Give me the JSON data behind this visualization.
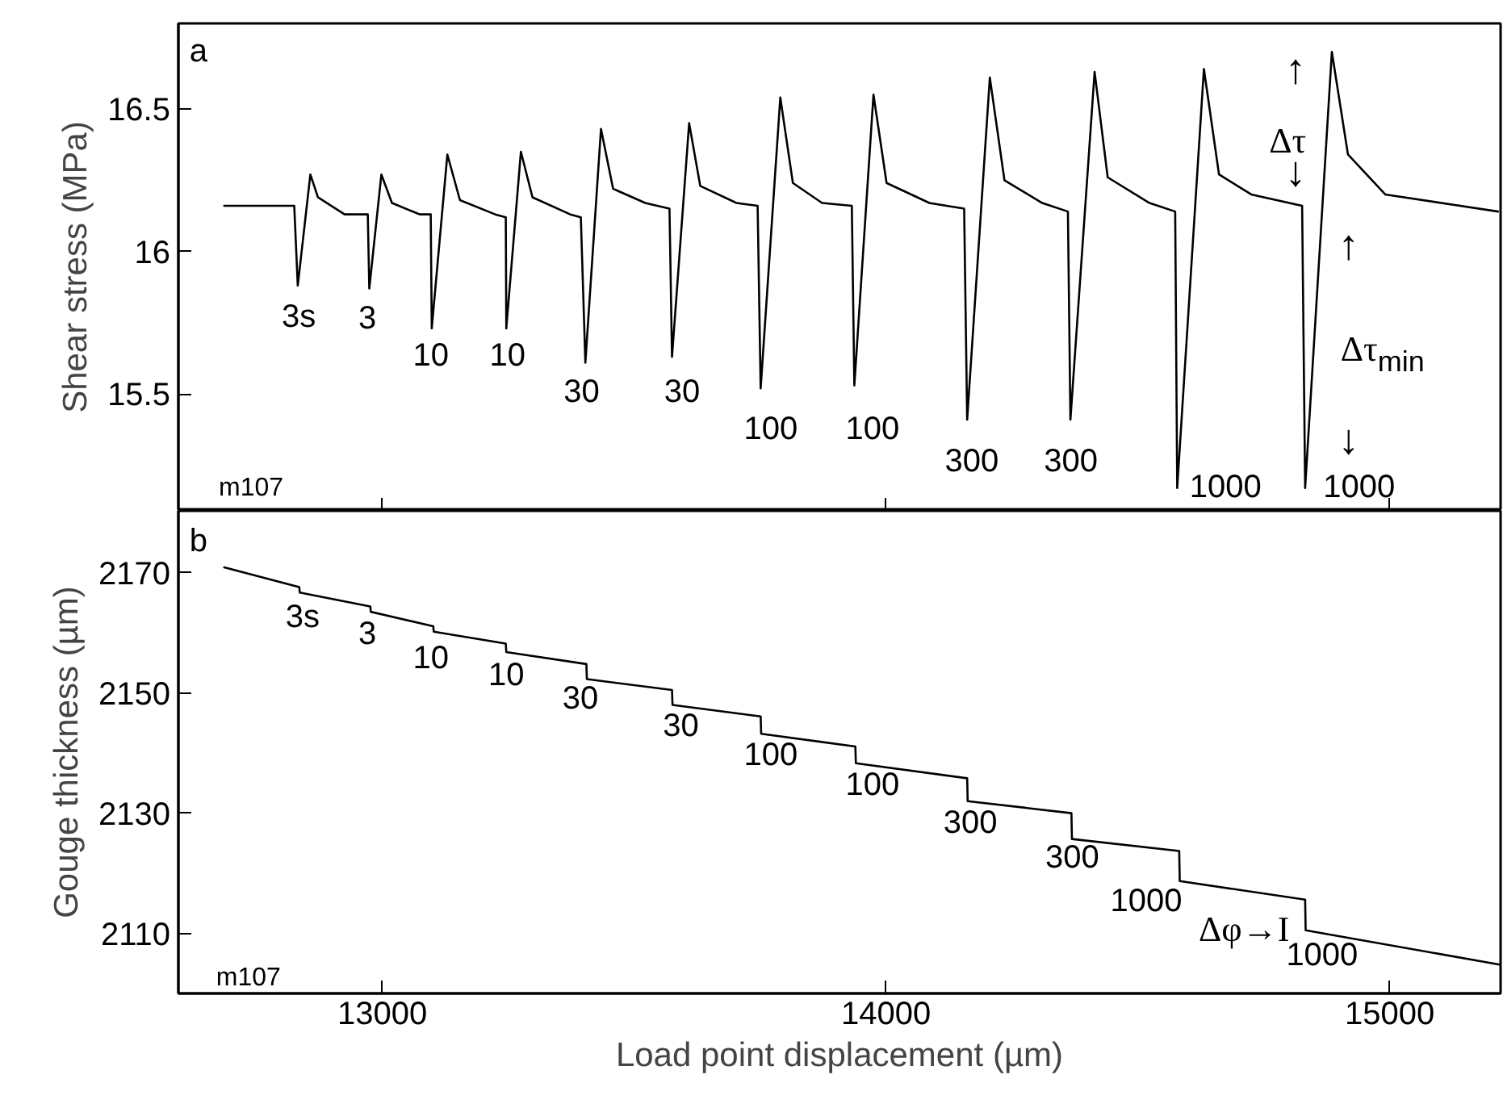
{
  "chart_data": [
    {
      "type": "line",
      "ylabel": "Shear stress (MPa)",
      "xlim": [
        12595,
        15220
      ],
      "ylim": [
        15.09,
        16.8
      ],
      "xticks": [
        13000,
        14000,
        15000
      ],
      "yticks": [
        15.5,
        16,
        16.5
      ],
      "tick_labels": "y",
      "series": [
        {
          "color": "#000000",
          "x": [
            12686,
            12825,
            12832,
            12857,
            12872,
            12925,
            12971,
            12974,
            12998,
            13019,
            13074,
            13096,
            13098,
            13129,
            13154,
            13224,
            13245,
            13246,
            13275,
            13298,
            13373,
            13394,
            13403,
            13434,
            13458,
            13522,
            13570,
            13575,
            13609,
            13631,
            13703,
            13745,
            13751,
            13790,
            13815,
            13873,
            13932,
            13937,
            13975,
            14001,
            14086,
            14155,
            14161,
            14206,
            14235,
            14310,
            14361,
            14366,
            14414,
            14440,
            14523,
            14574,
            14578,
            14631,
            14661,
            14725,
            14826,
            14832,
            14885,
            14917,
            14991,
            15215
          ],
          "values": [
            16.16,
            16.16,
            15.88,
            16.27,
            16.19,
            16.13,
            16.13,
            15.87,
            16.27,
            16.17,
            16.13,
            16.13,
            15.73,
            16.34,
            16.18,
            16.13,
            16.12,
            15.73,
            16.35,
            16.19,
            16.13,
            16.12,
            15.61,
            16.43,
            16.22,
            16.17,
            16.15,
            15.63,
            16.45,
            16.23,
            16.17,
            16.16,
            15.52,
            16.54,
            16.24,
            16.17,
            16.16,
            15.53,
            16.55,
            16.24,
            16.17,
            16.15,
            15.41,
            16.61,
            16.25,
            16.17,
            16.14,
            15.41,
            16.63,
            16.26,
            16.17,
            16.14,
            15.17,
            16.64,
            16.27,
            16.2,
            16.16,
            15.17,
            16.7,
            16.34,
            16.2,
            16.14
          ]
        }
      ],
      "annotations": [
        "a",
        "m107",
        "3s",
        "3",
        "10",
        "10",
        "30",
        "30",
        "100",
        "100",
        "300",
        "300",
        "1000",
        "1000",
        "↑",
        "Δτ",
        "↓",
        "↑",
        "Δτ$_{min}$",
        "↓"
      ]
    },
    {
      "type": "line",
      "ylabel": "Gouge thickness (µm)",
      "xlabel": "Load point displacement (µm)",
      "xlim": [
        12595,
        15220
      ],
      "ylim": [
        2100,
        2180.3
      ],
      "xticks": [
        13000,
        14000,
        15000
      ],
      "yticks": [
        2110,
        2130,
        2150,
        2170
      ],
      "series": [
        {
          "color": "#000000",
          "x": [
            12686,
            12835,
            12836,
            12976,
            12977,
            13101,
            13102,
            13245,
            13246,
            13405,
            13406,
            13575,
            13576,
            13751,
            13752,
            13939,
            13940,
            14161,
            14162,
            14368,
            14369,
            14582,
            14583,
            14832,
            14833,
            15218
          ],
          "values": [
            2170.9,
            2167.6,
            2166.7,
            2164.4,
            2163.5,
            2161.1,
            2160.2,
            2158.2,
            2156.8,
            2154.8,
            2152.3,
            2150.5,
            2148.0,
            2146.1,
            2143.2,
            2141.1,
            2138.3,
            2135.8,
            2132.0,
            2130.0,
            2125.7,
            2123.7,
            2118.7,
            2115.6,
            2110.5,
            2104.8
          ]
        }
      ],
      "annotations": [
        "b",
        "m107",
        "3s",
        "3",
        "10",
        "10",
        "30",
        "30",
        "100",
        "100",
        "300",
        "300",
        "1000",
        "Δφ→I",
        "1000"
      ]
    }
  ]
}
